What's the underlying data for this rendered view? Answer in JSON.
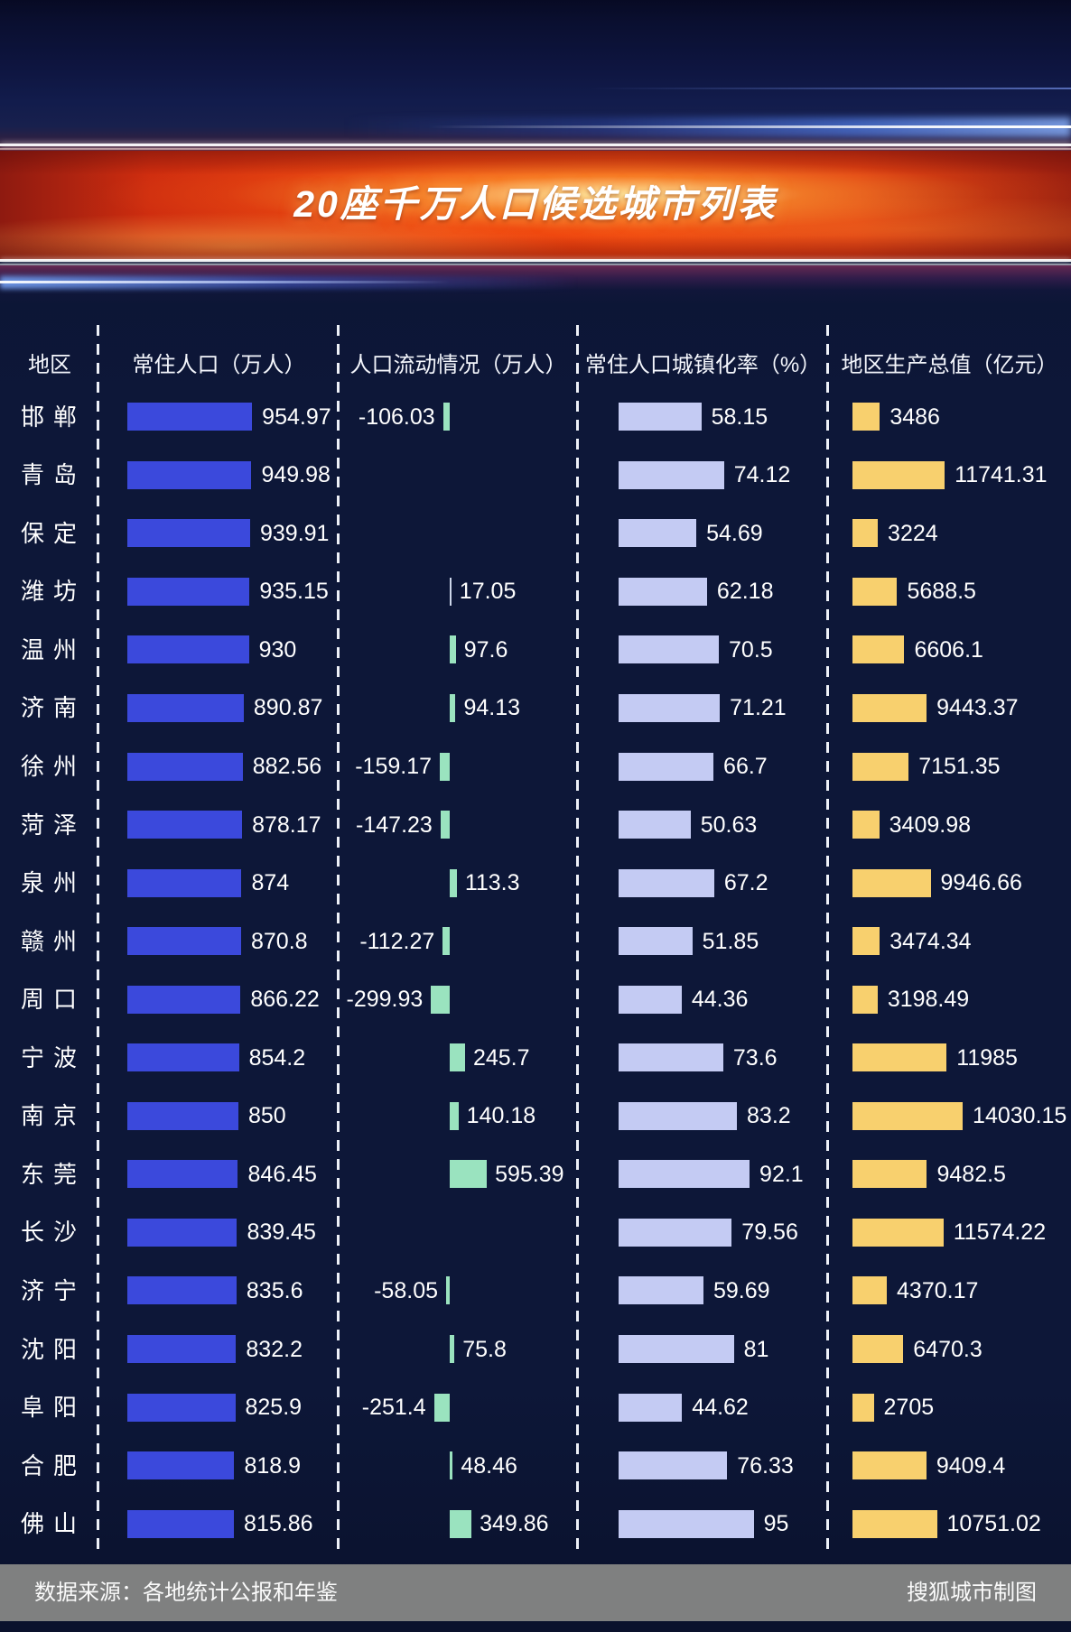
{
  "title": "20座千万人口候选城市列表",
  "columns": {
    "region": "地区",
    "population": "常住人口（万人）",
    "flow": "人口流动情况（万人）",
    "urbanization": "常住人口城镇化率（%）",
    "gdp": "地区生产总值（亿元）"
  },
  "rows": [
    {
      "city": "邯郸",
      "pop": "954.97",
      "flow": "-106.03",
      "urban": "58.15",
      "gdp": "3486"
    },
    {
      "city": "青岛",
      "pop": "949.98",
      "flow": "",
      "urban": "74.12",
      "gdp": "11741.31"
    },
    {
      "city": "保定",
      "pop": "939.91",
      "flow": "",
      "urban": "54.69",
      "gdp": "3224"
    },
    {
      "city": "潍坊",
      "pop": "935.15",
      "flow": "17.05",
      "urban": "62.18",
      "gdp": "5688.5"
    },
    {
      "city": "温州",
      "pop": "930",
      "flow": "97.6",
      "urban": "70.5",
      "gdp": "6606.1"
    },
    {
      "city": "济南",
      "pop": "890.87",
      "flow": "94.13",
      "urban": "71.21",
      "gdp": "9443.37"
    },
    {
      "city": "徐州",
      "pop": "882.56",
      "flow": "-159.17",
      "urban": "66.7",
      "gdp": "7151.35"
    },
    {
      "city": "菏泽",
      "pop": "878.17",
      "flow": "-147.23",
      "urban": "50.63",
      "gdp": "3409.98"
    },
    {
      "city": "泉州",
      "pop": "874",
      "flow": "113.3",
      "urban": "67.2",
      "gdp": "9946.66"
    },
    {
      "city": "赣州",
      "pop": "870.8",
      "flow": "-112.27",
      "urban": "51.85",
      "gdp": "3474.34"
    },
    {
      "city": "周口",
      "pop": "866.22",
      "flow": "-299.93",
      "urban": "44.36",
      "gdp": "3198.49"
    },
    {
      "city": "宁波",
      "pop": "854.2",
      "flow": "245.7",
      "urban": "73.6",
      "gdp": "11985"
    },
    {
      "city": "南京",
      "pop": "850",
      "flow": "140.18",
      "urban": "83.2",
      "gdp": "14030.15"
    },
    {
      "city": "东莞",
      "pop": "846.45",
      "flow": "595.39",
      "urban": "92.1",
      "gdp": "9482.5"
    },
    {
      "city": "长沙",
      "pop": "839.45",
      "flow": "",
      "urban": "79.56",
      "gdp": "11574.22"
    },
    {
      "city": "济宁",
      "pop": "835.6",
      "flow": "-58.05",
      "urban": "59.69",
      "gdp": "4370.17"
    },
    {
      "city": "沈阳",
      "pop": "832.2",
      "flow": "75.8",
      "urban": "81",
      "gdp": "6470.3"
    },
    {
      "city": "阜阳",
      "pop": "825.9",
      "flow": "-251.4",
      "urban": "44.62",
      "gdp": "2705"
    },
    {
      "city": "合肥",
      "pop": "818.9",
      "flow": "48.46",
      "urban": "76.33",
      "gdp": "9409.4"
    },
    {
      "city": "佛山",
      "pop": "815.86",
      "flow": "349.86",
      "urban": "95",
      "gdp": "10751.02"
    }
  ],
  "footer": {
    "source": "数据来源：各地统计公报和年鉴",
    "credit": "搜狐城市制图"
  },
  "colors": {
    "bar_blue": "#3b49dc",
    "bar_green": "#9ae3bf",
    "bar_thin": "#ccd6ea",
    "bar_lavender": "#c4cbf3",
    "bar_gold": "#f8d06e",
    "footer_bg": "#7f8080",
    "banner_red": "#e83a0e",
    "background": "#0d1738"
  },
  "chart_data": {
    "type": "bar",
    "orientation": "horizontal",
    "title": "20座千万人口候选城市列表",
    "categories": [
      "邯郸",
      "青岛",
      "保定",
      "潍坊",
      "温州",
      "济南",
      "徐州",
      "菏泽",
      "泉州",
      "赣州",
      "周口",
      "宁波",
      "南京",
      "东莞",
      "长沙",
      "济宁",
      "沈阳",
      "阜阳",
      "合肥",
      "佛山"
    ],
    "series": [
      {
        "name": "常住人口（万人）",
        "values": [
          954.97,
          949.98,
          939.91,
          935.15,
          930,
          890.87,
          882.56,
          878.17,
          874,
          870.8,
          866.22,
          854.2,
          850,
          846.45,
          839.45,
          835.6,
          832.2,
          825.9,
          818.9,
          815.86
        ]
      },
      {
        "name": "人口流动情况（万人）",
        "values": [
          -106.03,
          null,
          null,
          17.05,
          97.6,
          94.13,
          -159.17,
          -147.23,
          113.3,
          -112.27,
          -299.93,
          245.7,
          140.18,
          595.39,
          null,
          -58.05,
          75.8,
          -251.4,
          48.46,
          349.86
        ]
      },
      {
        "name": "常住人口城镇化率（%）",
        "values": [
          58.15,
          74.12,
          54.69,
          62.18,
          70.5,
          71.21,
          66.7,
          50.63,
          67.2,
          51.85,
          44.36,
          73.6,
          83.2,
          92.1,
          79.56,
          59.69,
          81,
          44.62,
          76.33,
          95
        ]
      },
      {
        "name": "地区生产总值（亿元）",
        "values": [
          3486,
          11741.31,
          3224,
          5688.5,
          6606.1,
          9443.37,
          7151.35,
          3409.98,
          9946.66,
          3474.34,
          3198.49,
          11985,
          14030.15,
          9482.5,
          11574.22,
          4370.17,
          6470.3,
          2705,
          9409.4,
          10751.02
        ]
      }
    ],
    "legend_position": "none",
    "grid": false
  }
}
